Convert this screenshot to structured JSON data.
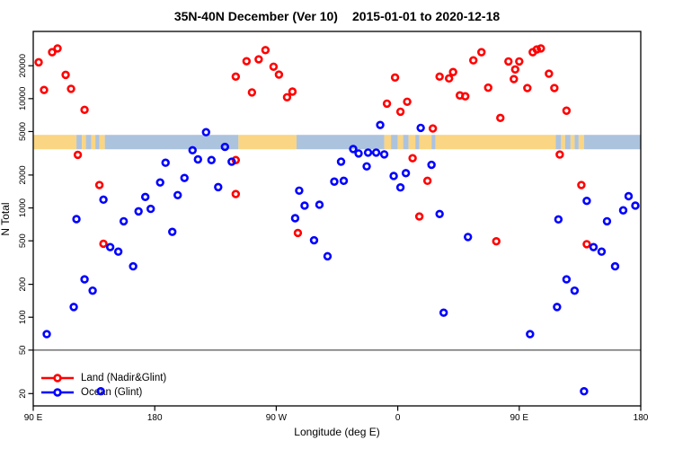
{
  "title": {
    "main": "35N-40N December (Ver 10)",
    "dates": "2015-01-01 to 2020-12-18"
  },
  "axes": {
    "y_label": "N Total",
    "x_label": "Longitude (deg E)"
  },
  "legend": {
    "items": [
      {
        "label": "Land (Nadir&Glint)",
        "color": "#ff0000"
      },
      {
        "label": "Ocean (Glint)",
        "color": "#0000ff"
      }
    ]
  },
  "chart_data": {
    "type": "scatter",
    "title": "35N-40N December (Ver 10)   2015-01-01 to 2020-12-18",
    "xlabel": "Longitude (deg E)",
    "ylabel": "N Total",
    "x_axis": {
      "units": "deg E (unwrapped, 450 deg span)",
      "range": [
        90,
        540
      ],
      "grid": false,
      "ticks": [
        {
          "lon": 90,
          "label": "90 E"
        },
        {
          "lon": 180,
          "label": "180"
        },
        {
          "lon": 270,
          "label": "90 W"
        },
        {
          "lon": 360,
          "label": "0"
        },
        {
          "lon": 450,
          "label": "90 E"
        },
        {
          "lon": 540,
          "label": "180"
        }
      ]
    },
    "y_axis": {
      "scale": "log",
      "range": [
        15,
        41000
      ],
      "ticks": [
        20,
        50,
        100,
        200,
        500,
        1000,
        2000,
        5000,
        10000,
        20000
      ]
    },
    "reference_line": {
      "value": 50,
      "color": "#555555"
    },
    "surface_band": {
      "value_top": 4660,
      "value_bottom": 3440,
      "land_color": "#fad583",
      "ocean_color": "#acc3de",
      "segments": [
        [
          90,
          122,
          "land"
        ],
        [
          122,
          126,
          "ocean"
        ],
        [
          126,
          129,
          "land"
        ],
        [
          129,
          133,
          "ocean"
        ],
        [
          133,
          136,
          "land"
        ],
        [
          136,
          139,
          "ocean"
        ],
        [
          139,
          143,
          "land"
        ],
        [
          143,
          242,
          "ocean"
        ],
        [
          242,
          285,
          "land"
        ],
        [
          285,
          350,
          "ocean"
        ],
        [
          350,
          355,
          "land"
        ],
        [
          355,
          360,
          "ocean"
        ],
        [
          360,
          364,
          "land"
        ],
        [
          364,
          368,
          "ocean"
        ],
        [
          368,
          373,
          "land"
        ],
        [
          373,
          376,
          "ocean"
        ],
        [
          376,
          385,
          "land"
        ],
        [
          385,
          388,
          "ocean"
        ],
        [
          388,
          477,
          "land"
        ],
        [
          477,
          481,
          "ocean"
        ],
        [
          481,
          484,
          "land"
        ],
        [
          484,
          488,
          "ocean"
        ],
        [
          488,
          491,
          "land"
        ],
        [
          491,
          494,
          "ocean"
        ],
        [
          494,
          498,
          "land"
        ],
        [
          498,
          540,
          "ocean"
        ]
      ]
    },
    "series": [
      {
        "name": "Land (Nadir&Glint)",
        "color": "#ff0000",
        "points": [
          [
            94,
            21500
          ],
          [
            104,
            26600
          ],
          [
            108,
            28800
          ],
          [
            114,
            16500
          ],
          [
            98,
            12000
          ],
          [
            118,
            12300
          ],
          [
            128,
            7900
          ],
          [
            123,
            3060
          ],
          [
            139,
            1620
          ],
          [
            142,
            470
          ],
          [
            240,
            15900
          ],
          [
            248,
            22000
          ],
          [
            257,
            22900
          ],
          [
            262,
            27800
          ],
          [
            268,
            19600
          ],
          [
            272,
            16600
          ],
          [
            252,
            11400
          ],
          [
            278,
            10300
          ],
          [
            282,
            11600
          ],
          [
            240,
            2740
          ],
          [
            240,
            1340
          ],
          [
            286,
            590
          ],
          [
            358,
            15600
          ],
          [
            352,
            9000
          ],
          [
            367,
            9370
          ],
          [
            362,
            7590
          ],
          [
            391,
            15900
          ],
          [
            398,
            15300
          ],
          [
            401,
            17500
          ],
          [
            406,
            10700
          ],
          [
            410,
            10500
          ],
          [
            386,
            5330
          ],
          [
            371,
            2850
          ],
          [
            376,
            835
          ],
          [
            382,
            1770
          ],
          [
            422,
            26600
          ],
          [
            416,
            22400
          ],
          [
            427,
            12600
          ],
          [
            442,
            21900
          ],
          [
            450,
            21900
          ],
          [
            447,
            18500
          ],
          [
            446,
            15100
          ],
          [
            460,
            26600
          ],
          [
            463,
            28200
          ],
          [
            466,
            28800
          ],
          [
            456,
            12500
          ],
          [
            472,
            16900
          ],
          [
            476,
            12500
          ],
          [
            485,
            7760
          ],
          [
            436,
            6660
          ],
          [
            480,
            3080
          ],
          [
            496,
            1620
          ],
          [
            433,
            495
          ],
          [
            500,
            466
          ]
        ]
      },
      {
        "name": "Ocean (Glint)",
        "color": "#0000ff",
        "points": [
          [
            100,
            70
          ],
          [
            122,
            790
          ],
          [
            128,
            222
          ],
          [
            134,
            175
          ],
          [
            120,
            124
          ],
          [
            147,
            438
          ],
          [
            153,
            398
          ],
          [
            157,
            755
          ],
          [
            164,
            292
          ],
          [
            140,
            21
          ],
          [
            142,
            1190
          ],
          [
            173,
            1260
          ],
          [
            168,
            930
          ],
          [
            177,
            980
          ],
          [
            184,
            1710
          ],
          [
            193,
            604
          ],
          [
            188,
            2590
          ],
          [
            197,
            1310
          ],
          [
            202,
            1880
          ],
          [
            208,
            3370
          ],
          [
            212,
            2780
          ],
          [
            218,
            4930
          ],
          [
            222,
            2740
          ],
          [
            227,
            1550
          ],
          [
            232,
            3620
          ],
          [
            237,
            2650
          ],
          [
            284,
            805
          ],
          [
            287,
            1440
          ],
          [
            291,
            1050
          ],
          [
            298,
            506
          ],
          [
            302,
            1070
          ],
          [
            308,
            361
          ],
          [
            313,
            1740
          ],
          [
            320,
            1770
          ],
          [
            318,
            2650
          ],
          [
            327,
            3460
          ],
          [
            331,
            3150
          ],
          [
            338,
            3210
          ],
          [
            344,
            3210
          ],
          [
            350,
            3090
          ],
          [
            337,
            2400
          ],
          [
            347,
            5740
          ],
          [
            357,
            1960
          ],
          [
            362,
            1540
          ],
          [
            366,
            2080
          ],
          [
            377,
            5400
          ],
          [
            385,
            2480
          ],
          [
            391,
            880
          ],
          [
            394,
            110
          ],
          [
            412,
            542
          ],
          [
            500,
            1160
          ],
          [
            479,
            785
          ],
          [
            458,
            70
          ],
          [
            485,
            222
          ],
          [
            491,
            175
          ],
          [
            478,
            124
          ],
          [
            505,
            438
          ],
          [
            511,
            398
          ],
          [
            515,
            755
          ],
          [
            521,
            292
          ],
          [
            527,
            950
          ],
          [
            531,
            1280
          ],
          [
            536,
            1050
          ],
          [
            498,
            21
          ]
        ]
      }
    ]
  }
}
